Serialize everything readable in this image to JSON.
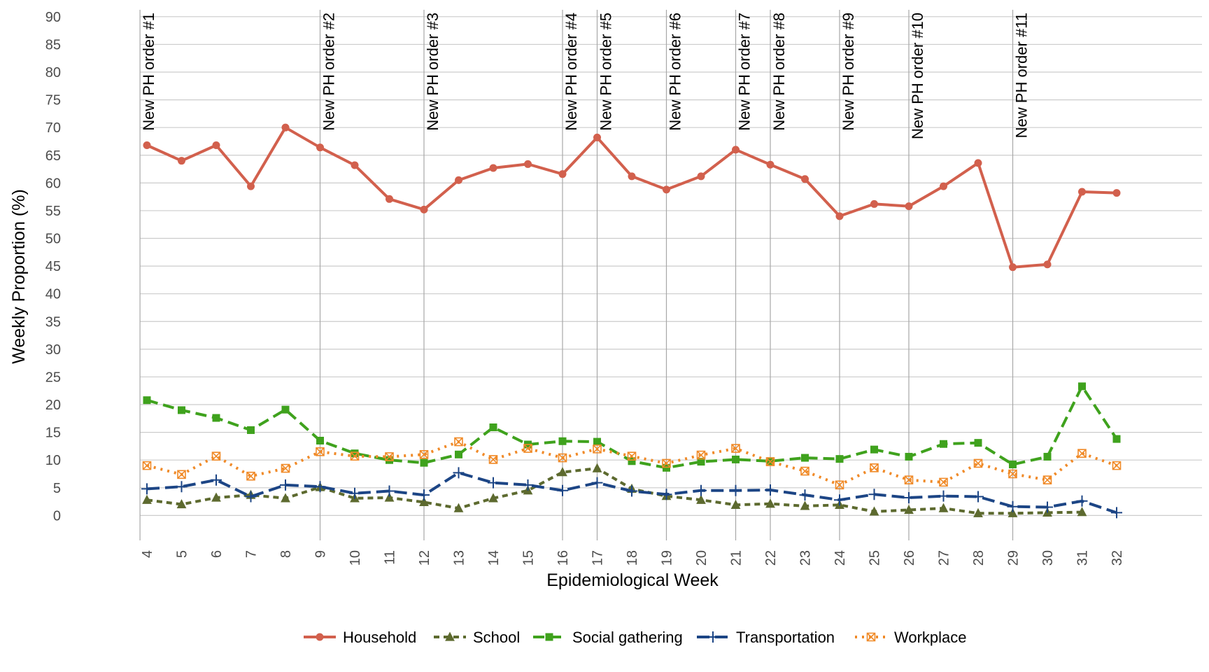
{
  "chart_data": {
    "type": "line",
    "xlabel": "Epidemiological Week",
    "ylabel": "Weekly Proportion (%)",
    "ylim": [
      -4.5,
      92
    ],
    "yticks": [
      0,
      5,
      10,
      15,
      20,
      25,
      30,
      35,
      40,
      45,
      50,
      55,
      60,
      65,
      70,
      75,
      80,
      85,
      90
    ],
    "x": [
      4,
      5,
      6,
      7,
      8,
      9,
      10,
      11,
      12,
      13,
      14,
      15,
      16,
      17,
      18,
      19,
      20,
      21,
      22,
      23,
      24,
      25,
      26,
      27,
      28,
      29,
      30,
      31,
      32
    ],
    "xlim": [
      3.8,
      33
    ],
    "grid": "horizontal",
    "legend_position": "bottom",
    "vertical_markers": [
      {
        "x": 3.8,
        "label": "New PH order #1"
      },
      {
        "x": 9,
        "label": "New PH order #2"
      },
      {
        "x": 12,
        "label": "New PH order #3"
      },
      {
        "x": 16,
        "label": "New PH order #4"
      },
      {
        "x": 17,
        "label": "New PH order #5"
      },
      {
        "x": 19,
        "label": "New PH order #6"
      },
      {
        "x": 21,
        "label": "New PH order #7"
      },
      {
        "x": 22,
        "label": "New PH order #8"
      },
      {
        "x": 24,
        "label": "New PH order #9"
      },
      {
        "x": 26,
        "label": "New PH order #10"
      },
      {
        "x": 29,
        "label": "New PH order #11"
      }
    ],
    "series": [
      {
        "name": "Household",
        "color": "#d2604d",
        "dash": "solid",
        "marker": "circle",
        "values": [
          66.8,
          64,
          66.8,
          59.4,
          70,
          66.4,
          63.2,
          57.1,
          55.2,
          60.5,
          62.7,
          63.4,
          61.6,
          68.2,
          61.2,
          58.8,
          61.2,
          66,
          63.3,
          60.7,
          54,
          56.2,
          55.8,
          59.4,
          63.6,
          44.8,
          45.3,
          58.4,
          58.2
        ]
      },
      {
        "name": "School",
        "color": "#5d6a2f",
        "dash": "8,6",
        "marker": "triangle",
        "values": [
          2.8,
          2,
          3.2,
          3.7,
          3.1,
          5.1,
          3.1,
          3.2,
          2.4,
          1.3,
          3.1,
          4.5,
          7.8,
          8.5,
          4.8,
          3.5,
          2.8,
          1.9,
          2.1,
          1.7,
          1.9,
          0.7,
          1,
          1.3,
          0.4,
          0.4,
          0.5,
          0.6,
          null
        ]
      },
      {
        "name": "Social gathering",
        "color": "#3fa21d",
        "dash": "16,8",
        "marker": "square",
        "values": [
          20.8,
          19,
          17.6,
          15.4,
          19.1,
          13.5,
          11.2,
          10,
          9.5,
          11,
          15.9,
          12.8,
          13.4,
          13.3,
          9.8,
          8.6,
          9.7,
          10.1,
          9.8,
          10.4,
          10.2,
          11.9,
          10.6,
          12.9,
          13.1,
          9.2,
          10.6,
          23.3,
          13.8
        ]
      },
      {
        "name": "Transportation",
        "color": "#1c4585",
        "dash": "18,8",
        "marker": "plus",
        "values": [
          4.8,
          5.2,
          6.4,
          3.4,
          5.5,
          5.2,
          4,
          4.4,
          3.7,
          7.7,
          5.9,
          5.5,
          4.5,
          5.9,
          4.4,
          3.8,
          4.5,
          4.5,
          4.6,
          3.7,
          2.8,
          3.8,
          3.2,
          3.5,
          3.4,
          1.6,
          1.5,
          2.6,
          0.5
        ]
      },
      {
        "name": "Workplace",
        "color": "#f08a28",
        "dash": "3,7",
        "marker": "square-x",
        "values": [
          9,
          7.4,
          10.7,
          7.1,
          8.5,
          11.5,
          10.7,
          10.6,
          11,
          13.3,
          10.1,
          12.1,
          10.4,
          12,
          10.7,
          9.4,
          10.9,
          12.1,
          9.7,
          8,
          5.5,
          8.6,
          6.4,
          6,
          9.4,
          7.5,
          6.4,
          11.2,
          9
        ]
      }
    ]
  }
}
